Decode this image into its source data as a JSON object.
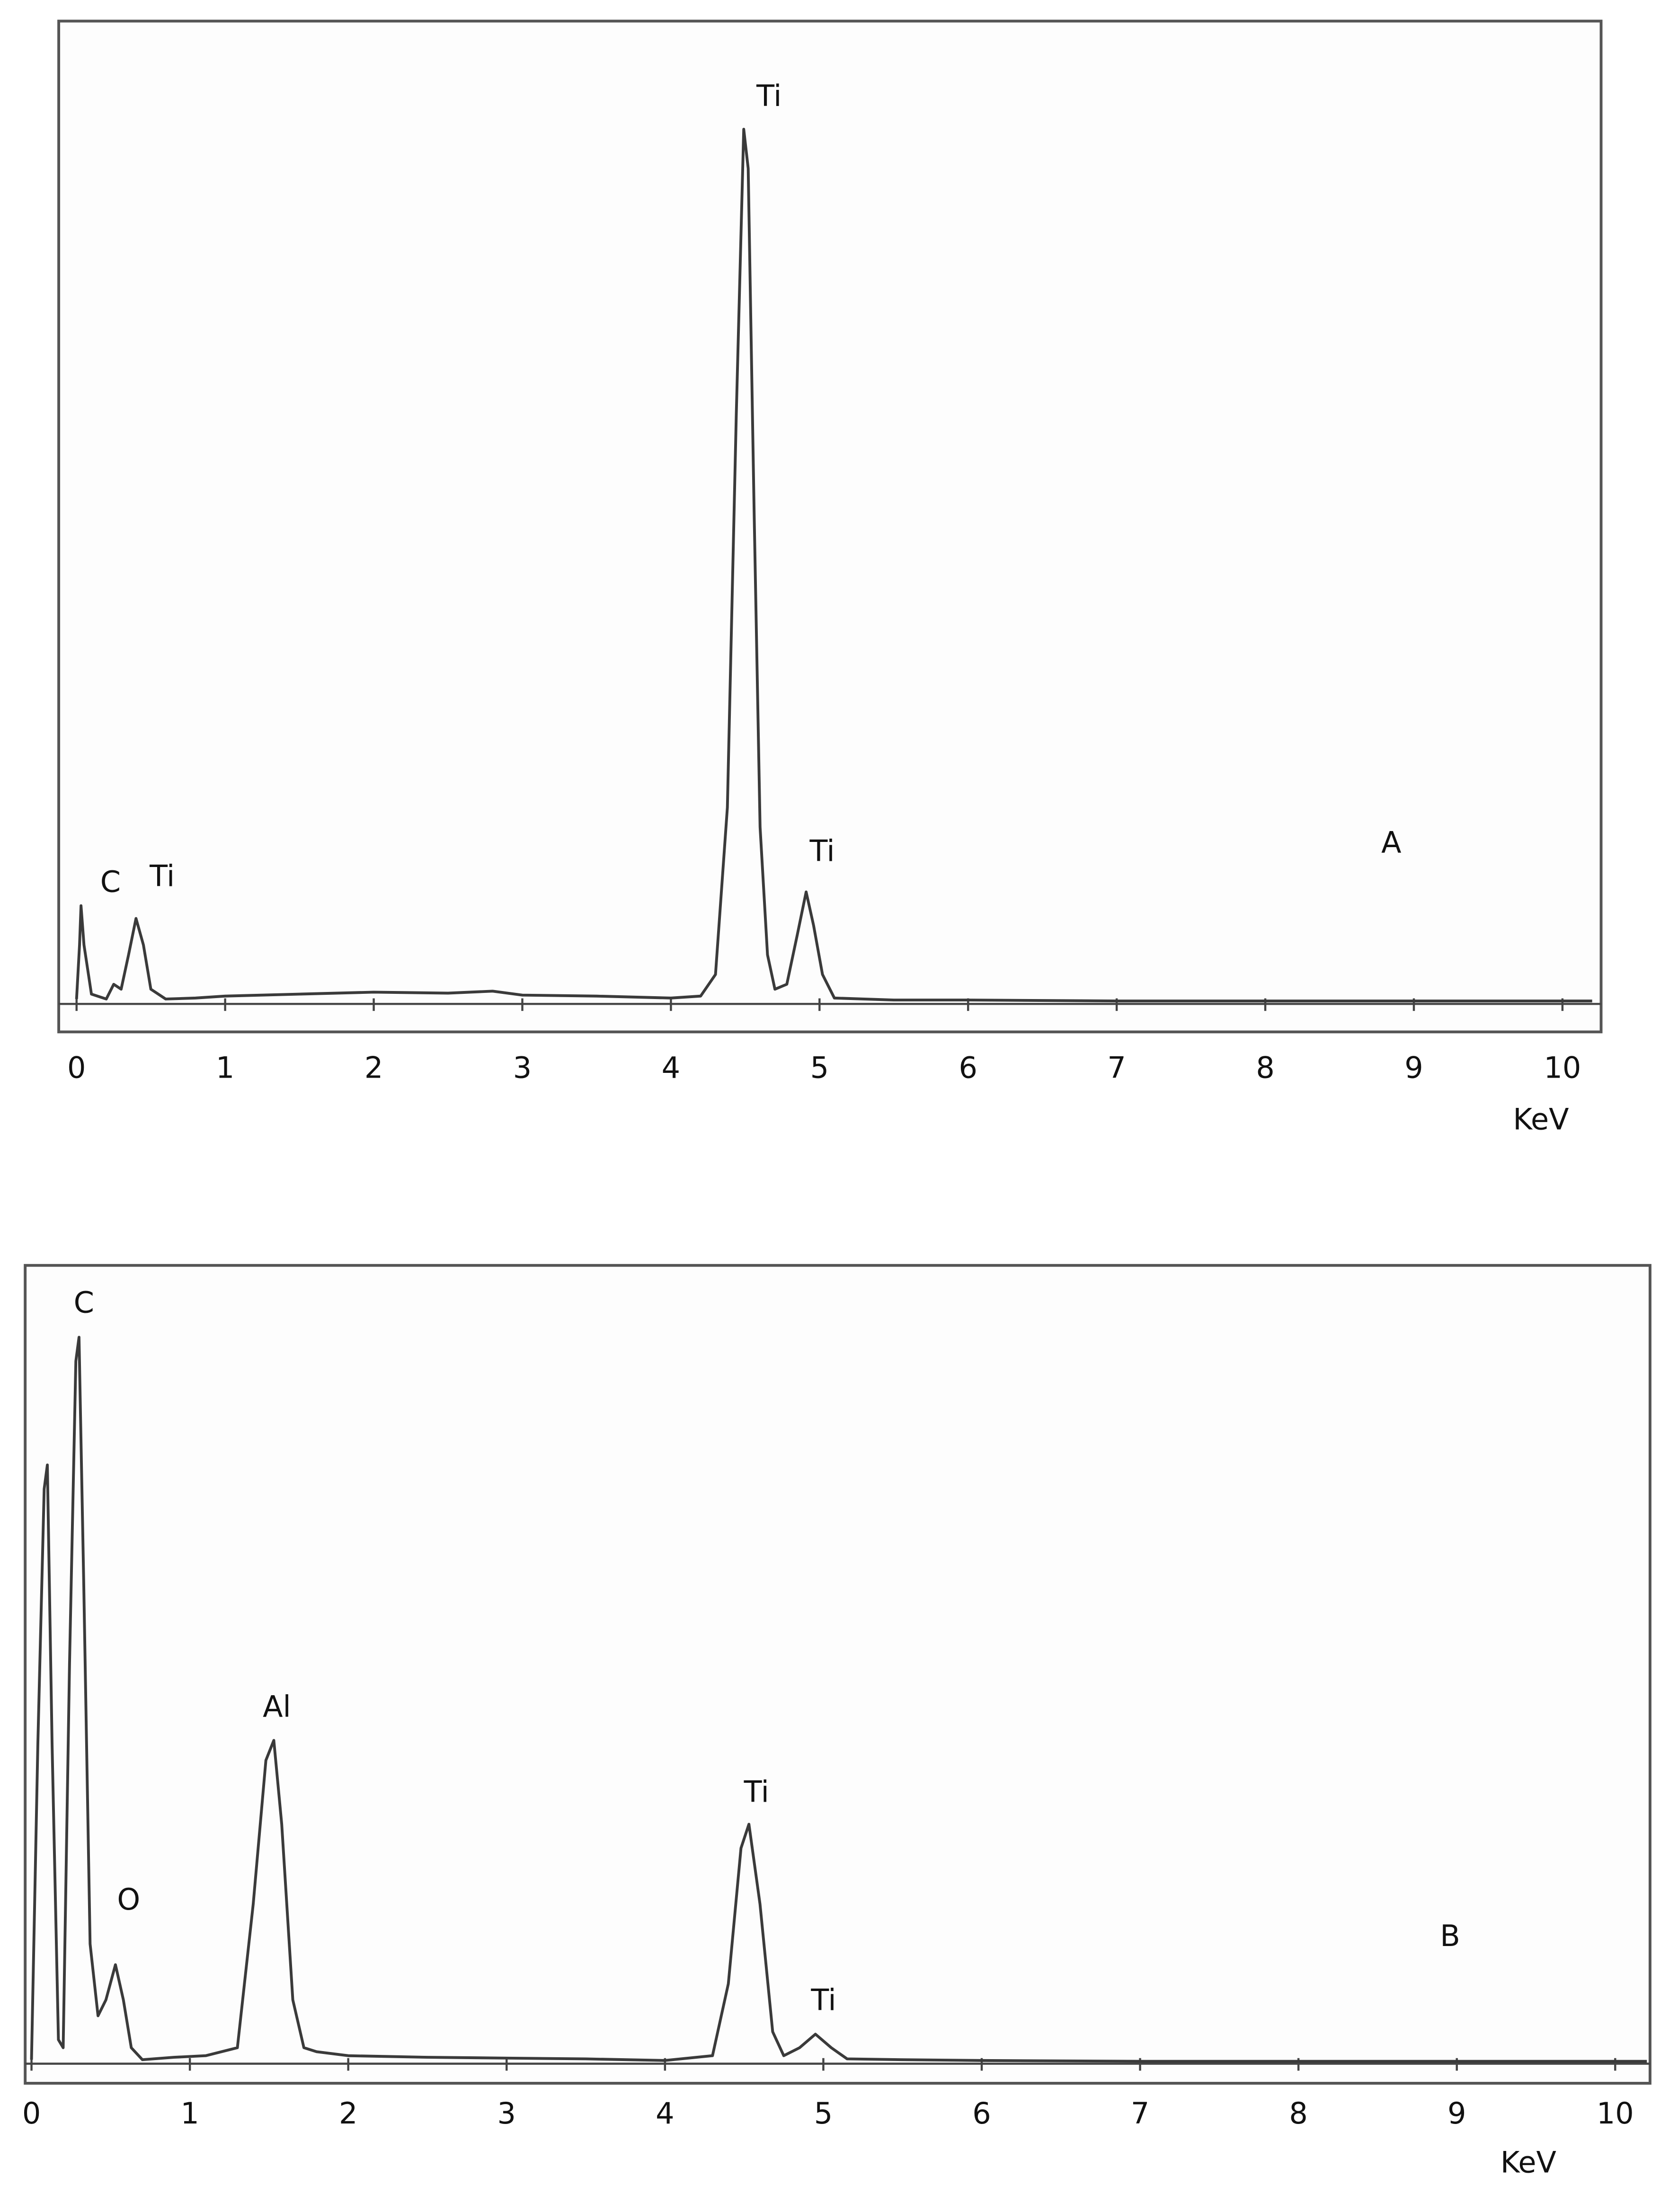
{
  "chart_data": [
    {
      "type": "line",
      "xlabel": "KeV",
      "color": "#3a3a3a",
      "xlim": [
        -0.12,
        10.26
      ],
      "xticks": [
        0,
        1,
        2,
        3,
        4,
        5,
        6,
        7,
        8,
        9,
        10
      ],
      "ylim": [
        0,
        100
      ],
      "x": [
        0,
        0.02,
        0.03,
        0.05,
        0.1,
        0.2,
        0.25,
        0.3,
        0.35,
        0.4,
        0.45,
        0.5,
        0.6,
        0.8,
        1.0,
        1.5,
        2.0,
        2.5,
        2.8,
        3.0,
        3.5,
        4.0,
        4.2,
        4.3,
        4.38,
        4.44,
        4.49,
        4.52,
        4.56,
        4.6,
        4.65,
        4.7,
        4.78,
        4.85,
        4.91,
        4.96,
        5.02,
        5.1,
        5.5,
        6,
        7,
        8,
        9,
        10,
        10.2
      ],
      "values": [
        0.5,
        6,
        10,
        6,
        1,
        0.5,
        2,
        1.5,
        5,
        8.7,
        6,
        1.5,
        0.5,
        0.6,
        0.8,
        1,
        1.2,
        1.1,
        1.3,
        0.9,
        0.8,
        0.6,
        0.8,
        3,
        20,
        60,
        89,
        85,
        50,
        18,
        5,
        1.5,
        2,
        7,
        11.4,
        8,
        3,
        0.6,
        0.4,
        0.4,
        0.3,
        0.3,
        0.3,
        0.3,
        0.3
      ],
      "annotations": [
        "C",
        "Ti",
        "Ti",
        "Ti",
        "A"
      ]
    },
    {
      "type": "line",
      "xlabel": "KeV",
      "color": "#3a3a3a",
      "xlim": [
        -0.04,
        10.22
      ],
      "xticks": [
        0,
        1,
        2,
        3,
        4,
        5,
        6,
        7,
        8,
        9,
        10
      ],
      "ylim": [
        0,
        100
      ],
      "x": [
        0,
        0.04,
        0.08,
        0.1,
        0.13,
        0.17,
        0.2,
        0.24,
        0.28,
        0.3,
        0.33,
        0.37,
        0.42,
        0.47,
        0.53,
        0.58,
        0.63,
        0.7,
        0.9,
        1.1,
        1.3,
        1.4,
        1.48,
        1.53,
        1.58,
        1.65,
        1.72,
        1.8,
        2.0,
        2.5,
        3.0,
        3.5,
        4.0,
        4.3,
        4.4,
        4.48,
        4.53,
        4.6,
        4.68,
        4.75,
        4.85,
        4.95,
        5.05,
        5.15,
        5.5,
        6,
        7,
        8,
        9,
        10,
        10.2
      ],
      "values": [
        0.5,
        40,
        72,
        75,
        40,
        3,
        2,
        50,
        88,
        91,
        60,
        15,
        6,
        8,
        12.4,
        8,
        2,
        0.5,
        0.8,
        1,
        2,
        20,
        38,
        40.5,
        30,
        8,
        2,
        1.5,
        1,
        0.8,
        0.7,
        0.6,
        0.4,
        1,
        10,
        27,
        30,
        20,
        4,
        1,
        2,
        3.7,
        2,
        0.6,
        0.5,
        0.4,
        0.3,
        0.3,
        0.3,
        0.3,
        0.3
      ],
      "annotations": [
        "C",
        "O",
        "Al",
        "Ti",
        "Ti",
        "B"
      ]
    }
  ]
}
